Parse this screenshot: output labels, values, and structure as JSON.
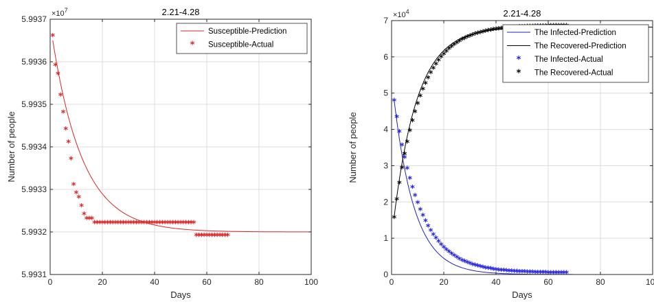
{
  "chart_data": [
    {
      "type": "line+scatter",
      "title": "2.21-4.28",
      "xlabel": "Days",
      "ylabel": "Number of people",
      "xlim": [
        0,
        100
      ],
      "ylim": [
        5.9931,
        5.9937
      ],
      "y_exponent_label": "×10",
      "y_exponent_power": "7",
      "xticks": [
        "0",
        "20",
        "40",
        "60",
        "80",
        "100"
      ],
      "yticks": [
        "5.9931",
        "5.9932",
        "5.9933",
        "5.9934",
        "5.9935",
        "5.9936",
        "5.9937"
      ],
      "grid": true,
      "legend_position": "top-right",
      "series": [
        {
          "name": "Susceptible-Prediction",
          "kind": "line",
          "color": "#d62728",
          "model": {
            "type": "exp_decay",
            "start": 5.99365,
            "asymptote": 5.9932,
            "rate": 0.085,
            "x_start": 1,
            "x_end": 100
          }
        },
        {
          "name": "Susceptible-Actual",
          "kind": "scatter",
          "marker": "*",
          "color": "#d62728",
          "x": [
            1,
            2,
            3,
            4,
            5,
            6,
            7,
            8,
            9,
            10,
            11,
            12,
            13,
            14,
            15,
            16,
            17,
            18,
            19,
            20,
            21,
            22,
            23,
            24,
            25,
            26,
            27,
            28,
            29,
            30,
            31,
            32,
            33,
            34,
            35,
            36,
            37,
            38,
            39,
            40,
            41,
            42,
            43,
            44,
            45,
            46,
            47,
            48,
            49,
            50,
            51,
            52,
            53,
            54,
            55,
            56,
            57,
            58,
            59,
            60,
            61,
            62,
            63,
            64,
            65,
            66,
            67,
            68
          ],
          "y": [
            5.99366,
            5.99359,
            5.99357,
            5.99352,
            5.99348,
            5.99344,
            5.99341,
            5.99337,
            5.99331,
            5.99329,
            5.99328,
            5.99326,
            5.99324,
            5.99323,
            5.99323,
            5.99323,
            5.99322,
            5.99322,
            5.99322,
            5.99322,
            5.99322,
            5.99322,
            5.99322,
            5.99322,
            5.99322,
            5.99322,
            5.99322,
            5.99322,
            5.99322,
            5.99322,
            5.99322,
            5.99322,
            5.99322,
            5.99322,
            5.99322,
            5.99322,
            5.99322,
            5.99322,
            5.99322,
            5.99322,
            5.99322,
            5.99322,
            5.99322,
            5.99322,
            5.99322,
            5.99322,
            5.99322,
            5.99322,
            5.99322,
            5.99322,
            5.99322,
            5.99322,
            5.99322,
            5.99322,
            5.99322,
            5.99319,
            5.99319,
            5.99319,
            5.99319,
            5.99319,
            5.99319,
            5.99319,
            5.99319,
            5.99319,
            5.99319,
            5.99319,
            5.99319,
            5.99319
          ]
        }
      ]
    },
    {
      "type": "line+scatter",
      "title": "2.21-4.28",
      "xlabel": "Days",
      "ylabel": "Number of people",
      "xlim": [
        0,
        100
      ],
      "ylim": [
        0,
        7
      ],
      "y_exponent_label": "×10",
      "y_exponent_power": "4",
      "xticks": [
        "0",
        "20",
        "40",
        "60",
        "80",
        "100"
      ],
      "yticks": [
        "0",
        "1",
        "2",
        "3",
        "4",
        "5",
        "6",
        "7"
      ],
      "grid": true,
      "legend_position": "top-right",
      "series": [
        {
          "name": "The Infected-Prediction",
          "kind": "line",
          "color": "#1f1fbf",
          "model": {
            "type": "exp_decay",
            "start": 4.8,
            "asymptote": 0.0,
            "rate": 0.125,
            "x_start": 1,
            "x_end": 100
          }
        },
        {
          "name": "The Recovered-Prediction",
          "kind": "line",
          "color": "#000000",
          "model": {
            "type": "exp_rise",
            "start": 1.6,
            "asymptote": 6.82,
            "rate": 0.11,
            "x_start": 1,
            "x_end": 100
          }
        },
        {
          "name": "The Infected-Actual",
          "kind": "scatter",
          "marker": "*",
          "color": "#1f1fdf",
          "model": {
            "type": "exp_decay",
            "start": 4.78,
            "asymptote": 0.02,
            "rate": 0.1,
            "x_start": 1,
            "x_end": 67,
            "step": 1
          }
        },
        {
          "name": "The Recovered-Actual",
          "kind": "scatter",
          "marker": "*",
          "color": "#000000",
          "model": {
            "type": "exp_rise",
            "start": 1.55,
            "asymptote": 6.85,
            "rate": 0.1,
            "x_start": 1,
            "x_end": 67,
            "step": 1
          }
        }
      ]
    }
  ]
}
